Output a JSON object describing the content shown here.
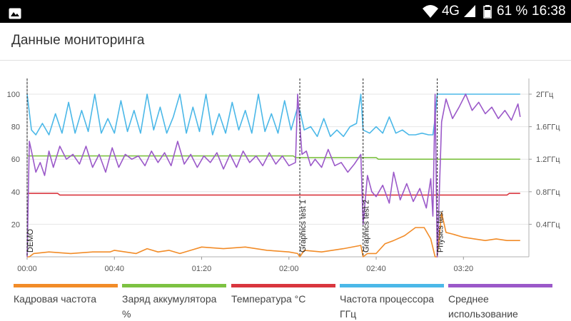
{
  "status_bar": {
    "network": "4G",
    "battery_percent": "61 %",
    "time": "16:38",
    "icons": [
      "gallery-icon",
      "wifi-icon",
      "signal-icon",
      "battery-icon"
    ]
  },
  "header": {
    "title": "Данные мониторинга"
  },
  "legend": [
    {
      "label": "Кадровая частота",
      "color": "#F28C28"
    },
    {
      "label": "Заряд аккумулятора %",
      "color": "#7DC242"
    },
    {
      "label": "Температура °C",
      "color": "#D9363E"
    },
    {
      "label": "Частота процессора ГГц",
      "color": "#4BB8E8"
    },
    {
      "label": "Среднее использование",
      "color": "#9B59C9"
    }
  ],
  "chart_data": {
    "type": "line",
    "title": "",
    "xlabel": "",
    "ylabel": "",
    "x_ticks": [
      "00:00",
      "00:40",
      "01:20",
      "02:00",
      "02:40",
      "03:20"
    ],
    "xlim": [
      "00:00",
      "03:50"
    ],
    "y_left_ticks": [
      "20",
      "40",
      "60",
      "80",
      "100"
    ],
    "ylim_left": [
      0,
      105
    ],
    "y_right_ticks": [
      "0.4ГГц",
      "0.8ГГц",
      "1.2ГГц",
      "1.6ГГц",
      "2ГГц"
    ],
    "ylim_right_ghz": [
      0,
      2.1
    ],
    "grid": "horizontal",
    "markers": [
      {
        "label": "DEMO",
        "time": "00:00"
      },
      {
        "label": "Graphics test 1",
        "time": "02:05"
      },
      {
        "label": "Graphics test 2",
        "time": "02:34"
      },
      {
        "label": "Physics test",
        "time": "03:08"
      }
    ],
    "series": [
      {
        "name": "Кадровая частота",
        "color": "#F28C28",
        "points": [
          [
            "00:00",
            0
          ],
          [
            "00:01",
            0
          ],
          [
            "00:03",
            2
          ],
          [
            "00:10",
            3
          ],
          [
            "00:20",
            2
          ],
          [
            "00:30",
            3
          ],
          [
            "00:38",
            3
          ],
          [
            "00:40",
            4
          ],
          [
            "00:50",
            2
          ],
          [
            "00:55",
            5
          ],
          [
            "01:00",
            3
          ],
          [
            "01:05",
            4
          ],
          [
            "01:10",
            2
          ],
          [
            "01:15",
            4
          ],
          [
            "01:20",
            6
          ],
          [
            "01:30",
            5
          ],
          [
            "01:40",
            6
          ],
          [
            "01:50",
            4
          ],
          [
            "02:00",
            3
          ],
          [
            "02:04",
            2
          ],
          [
            "02:05",
            0
          ],
          [
            "02:07",
            4
          ],
          [
            "02:15",
            3
          ],
          [
            "02:25",
            5
          ],
          [
            "02:33",
            7
          ],
          [
            "02:34",
            0
          ],
          [
            "02:36",
            2
          ],
          [
            "02:40",
            2
          ],
          [
            "02:44",
            8
          ],
          [
            "02:48",
            10
          ],
          [
            "02:53",
            13
          ],
          [
            "02:58",
            18
          ],
          [
            "03:02",
            18
          ],
          [
            "03:05",
            11
          ],
          [
            "03:07",
            0
          ],
          [
            "03:08",
            0
          ],
          [
            "03:10",
            27
          ],
          [
            "03:12",
            15
          ],
          [
            "03:15",
            14
          ],
          [
            "03:20",
            12
          ],
          [
            "03:25",
            11
          ],
          [
            "03:30",
            10
          ],
          [
            "03:35",
            11
          ],
          [
            "03:40",
            10
          ],
          [
            "03:46",
            10
          ]
        ]
      },
      {
        "name": "Заряд аккумулятора %",
        "color": "#7DC242",
        "points": [
          [
            "00:00",
            62
          ],
          [
            "02:02",
            62
          ],
          [
            "02:03",
            61
          ],
          [
            "02:40",
            61
          ],
          [
            "02:41",
            60
          ],
          [
            "03:46",
            60
          ]
        ]
      },
      {
        "name": "Температура °C",
        "color": "#D9363E",
        "points": [
          [
            "00:00",
            39
          ],
          [
            "00:14",
            39
          ],
          [
            "00:15",
            38
          ],
          [
            "03:40",
            38
          ],
          [
            "03:41",
            39
          ],
          [
            "03:46",
            39
          ]
        ]
      },
      {
        "name": "Частота процессора ГГц",
        "color": "#4BB8E8",
        "points": [
          [
            "00:00",
            100
          ],
          [
            "00:02",
            78
          ],
          [
            "00:04",
            75
          ],
          [
            "00:07",
            82
          ],
          [
            "00:10",
            75
          ],
          [
            "00:13",
            88
          ],
          [
            "00:16",
            76
          ],
          [
            "00:19",
            95
          ],
          [
            "00:22",
            76
          ],
          [
            "00:25",
            90
          ],
          [
            "00:28",
            77
          ],
          [
            "00:31",
            100
          ],
          [
            "00:34",
            76
          ],
          [
            "00:37",
            85
          ],
          [
            "00:40",
            76
          ],
          [
            "00:43",
            96
          ],
          [
            "00:46",
            77
          ],
          [
            "00:49",
            90
          ],
          [
            "00:52",
            76
          ],
          [
            "00:55",
            100
          ],
          [
            "00:58",
            78
          ],
          [
            "01:01",
            92
          ],
          [
            "01:04",
            76
          ],
          [
            "01:07",
            86
          ],
          [
            "01:10",
            100
          ],
          [
            "01:13",
            76
          ],
          [
            "01:16",
            92
          ],
          [
            "01:19",
            77
          ],
          [
            "01:22",
            100
          ],
          [
            "01:25",
            75
          ],
          [
            "01:28",
            88
          ],
          [
            "01:31",
            76
          ],
          [
            "01:34",
            95
          ],
          [
            "01:37",
            78
          ],
          [
            "01:40",
            90
          ],
          [
            "01:43",
            76
          ],
          [
            "01:46",
            100
          ],
          [
            "01:49",
            77
          ],
          [
            "01:52",
            88
          ],
          [
            "01:55",
            76
          ],
          [
            "01:58",
            96
          ],
          [
            "02:01",
            78
          ],
          [
            "02:04",
            92
          ],
          [
            "02:05",
            90
          ],
          [
            "02:07",
            78
          ],
          [
            "02:10",
            80
          ],
          [
            "02:13",
            74
          ],
          [
            "02:16",
            85
          ],
          [
            "02:19",
            74
          ],
          [
            "02:22",
            78
          ],
          [
            "02:25",
            74
          ],
          [
            "02:28",
            80
          ],
          [
            "02:31",
            82
          ],
          [
            "02:33",
            100
          ],
          [
            "02:34",
            78
          ],
          [
            "02:37",
            76
          ],
          [
            "02:40",
            80
          ],
          [
            "02:43",
            76
          ],
          [
            "02:46",
            86
          ],
          [
            "02:49",
            76
          ],
          [
            "02:52",
            78
          ],
          [
            "02:55",
            75
          ],
          [
            "02:58",
            75
          ],
          [
            "03:01",
            76
          ],
          [
            "03:04",
            75
          ],
          [
            "03:06",
            75
          ],
          [
            "03:07",
            85
          ],
          [
            "03:08",
            100
          ],
          [
            "03:20",
            100
          ],
          [
            "03:30",
            100
          ],
          [
            "03:46",
            100
          ]
        ]
      },
      {
        "name": "Среднее использование",
        "color": "#9B59C9",
        "points": [
          [
            "00:00",
            0
          ],
          [
            "00:01",
            71
          ],
          [
            "00:02",
            65
          ],
          [
            "00:04",
            52
          ],
          [
            "00:06",
            58
          ],
          [
            "00:08",
            50
          ],
          [
            "00:10",
            65
          ],
          [
            "00:12",
            55
          ],
          [
            "00:15",
            68
          ],
          [
            "00:18",
            60
          ],
          [
            "00:21",
            63
          ],
          [
            "00:24",
            57
          ],
          [
            "00:27",
            68
          ],
          [
            "00:30",
            55
          ],
          [
            "00:33",
            63
          ],
          [
            "00:36",
            52
          ],
          [
            "00:39",
            67
          ],
          [
            "00:42",
            55
          ],
          [
            "00:45",
            63
          ],
          [
            "00:48",
            60
          ],
          [
            "00:51",
            62
          ],
          [
            "00:54",
            56
          ],
          [
            "00:57",
            65
          ],
          [
            "01:00",
            58
          ],
          [
            "01:03",
            64
          ],
          [
            "01:06",
            56
          ],
          [
            "01:09",
            71
          ],
          [
            "01:12",
            57
          ],
          [
            "01:15",
            63
          ],
          [
            "01:18",
            55
          ],
          [
            "01:21",
            62
          ],
          [
            "01:24",
            58
          ],
          [
            "01:27",
            64
          ],
          [
            "01:30",
            54
          ],
          [
            "01:33",
            63
          ],
          [
            "01:36",
            55
          ],
          [
            "01:39",
            65
          ],
          [
            "01:42",
            58
          ],
          [
            "01:45",
            62
          ],
          [
            "01:48",
            56
          ],
          [
            "01:51",
            64
          ],
          [
            "01:54",
            57
          ],
          [
            "01:57",
            62
          ],
          [
            "02:00",
            56
          ],
          [
            "02:03",
            58
          ],
          [
            "02:04",
            100
          ],
          [
            "02:06",
            63
          ],
          [
            "02:08",
            65
          ],
          [
            "02:10",
            56
          ],
          [
            "02:12",
            60
          ],
          [
            "02:15",
            55
          ],
          [
            "02:18",
            66
          ],
          [
            "02:21",
            56
          ],
          [
            "02:24",
            58
          ],
          [
            "02:27",
            52
          ],
          [
            "02:30",
            57
          ],
          [
            "02:33",
            63
          ],
          [
            "02:34",
            20
          ],
          [
            "02:36",
            50
          ],
          [
            "02:38",
            40
          ],
          [
            "02:40",
            37
          ],
          [
            "02:43",
            44
          ],
          [
            "02:46",
            33
          ],
          [
            "02:48",
            52
          ],
          [
            "02:51",
            35
          ],
          [
            "02:54",
            45
          ],
          [
            "02:57",
            34
          ],
          [
            "03:00",
            42
          ],
          [
            "03:03",
            30
          ],
          [
            "03:05",
            48
          ],
          [
            "03:06",
            25
          ],
          [
            "03:07",
            100
          ],
          [
            "03:08",
            0
          ],
          [
            "03:10",
            83
          ],
          [
            "03:12",
            97
          ],
          [
            "03:15",
            85
          ],
          [
            "03:18",
            92
          ],
          [
            "03:21",
            100
          ],
          [
            "03:24",
            90
          ],
          [
            "03:27",
            95
          ],
          [
            "03:30",
            88
          ],
          [
            "03:33",
            92
          ],
          [
            "03:36",
            85
          ],
          [
            "03:39",
            90
          ],
          [
            "03:42",
            84
          ],
          [
            "03:45",
            94
          ],
          [
            "03:46",
            86
          ]
        ]
      }
    ]
  }
}
